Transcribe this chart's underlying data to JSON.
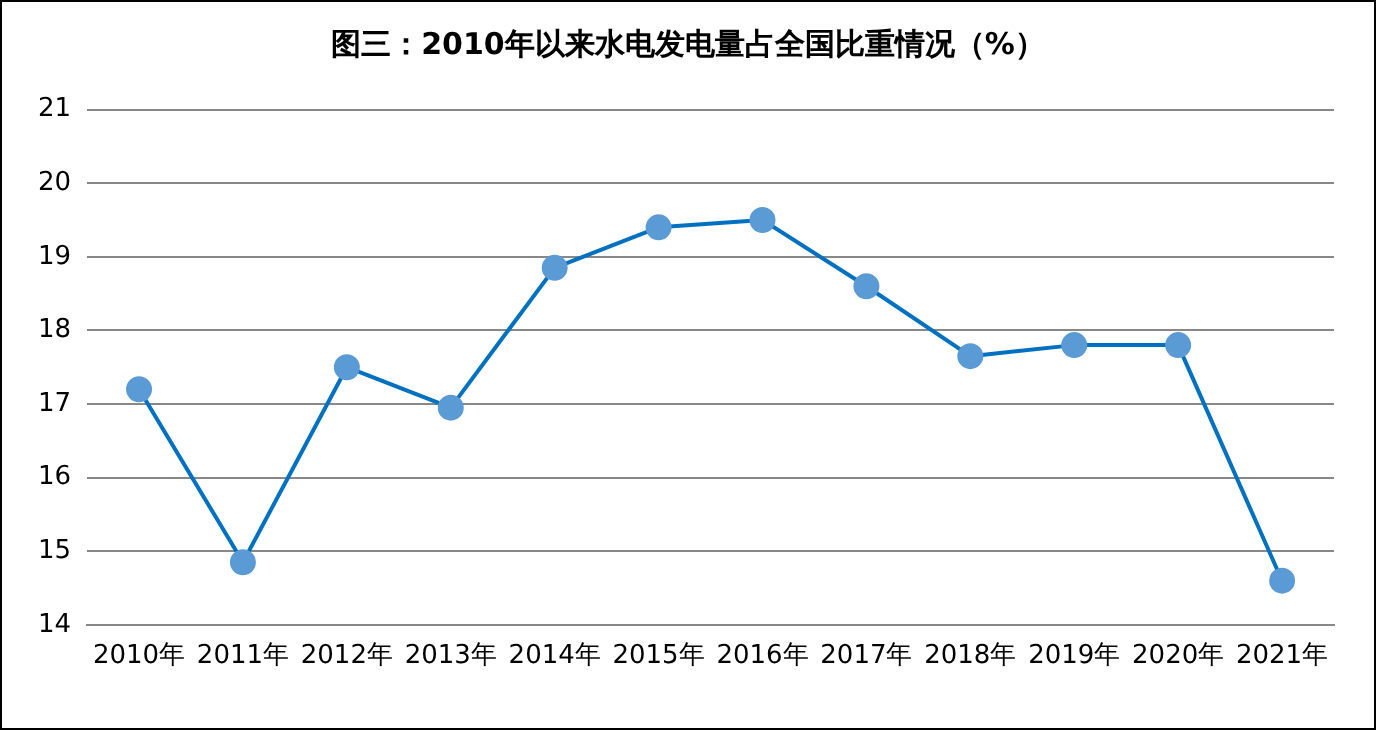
{
  "chart_data": {
    "type": "line",
    "title": "图三：2010年以来水电发电量占全国比重情况（%）",
    "categories": [
      "2010年",
      "2011年",
      "2012年",
      "2013年",
      "2014年",
      "2015年",
      "2016年",
      "2017年",
      "2018年",
      "2019年",
      "2020年",
      "2021年"
    ],
    "series": [
      {
        "color": "#0070c0",
        "values": [
          17.2,
          14.85,
          17.5,
          16.95,
          18.85,
          19.4,
          19.5,
          18.6,
          17.65,
          17.8,
          17.8,
          14.6
        ]
      }
    ],
    "ylim": [
      14,
      21
    ],
    "yticks": [
      14,
      15,
      16,
      17,
      18,
      19,
      20,
      21
    ],
    "grid": "y",
    "legend": false,
    "marker": "circle"
  }
}
